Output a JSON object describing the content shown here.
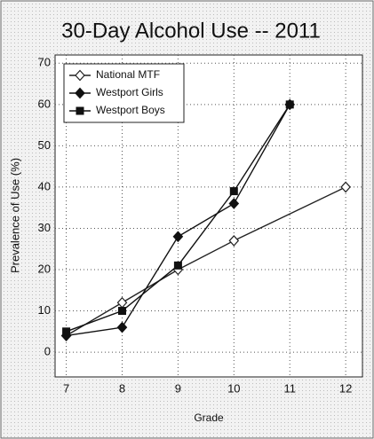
{
  "chart_data": {
    "type": "line",
    "title": "30-Day Alcohol Use -- 2011",
    "x_label": "Grade",
    "y_label": "Prevalence of Use (%)",
    "xlim": [
      6.8,
      12.3
    ],
    "xticks": [
      7,
      8,
      9,
      10,
      11,
      12
    ],
    "ylim": [
      -6,
      72
    ],
    "yticks": [
      0,
      10,
      20,
      30,
      40,
      50,
      60,
      70
    ],
    "grid": true,
    "legend": "top-left",
    "series": [
      {
        "name": "National MTF",
        "color": "#222",
        "marker": "open-diamond",
        "x": [
          7,
          8,
          9,
          10,
          12
        ],
        "values": [
          4,
          12,
          20,
          27,
          40
        ]
      },
      {
        "name": "Westport Girls",
        "color": "#111",
        "marker": "diamond",
        "x": [
          7,
          8,
          9,
          10,
          11
        ],
        "values": [
          4,
          6,
          28,
          36,
          60
        ]
      },
      {
        "name": "Westport Boys",
        "color": "#111",
        "marker": "square",
        "x": [
          7,
          8,
          9,
          10,
          11
        ],
        "values": [
          5,
          10,
          21,
          39,
          60
        ]
      }
    ]
  }
}
